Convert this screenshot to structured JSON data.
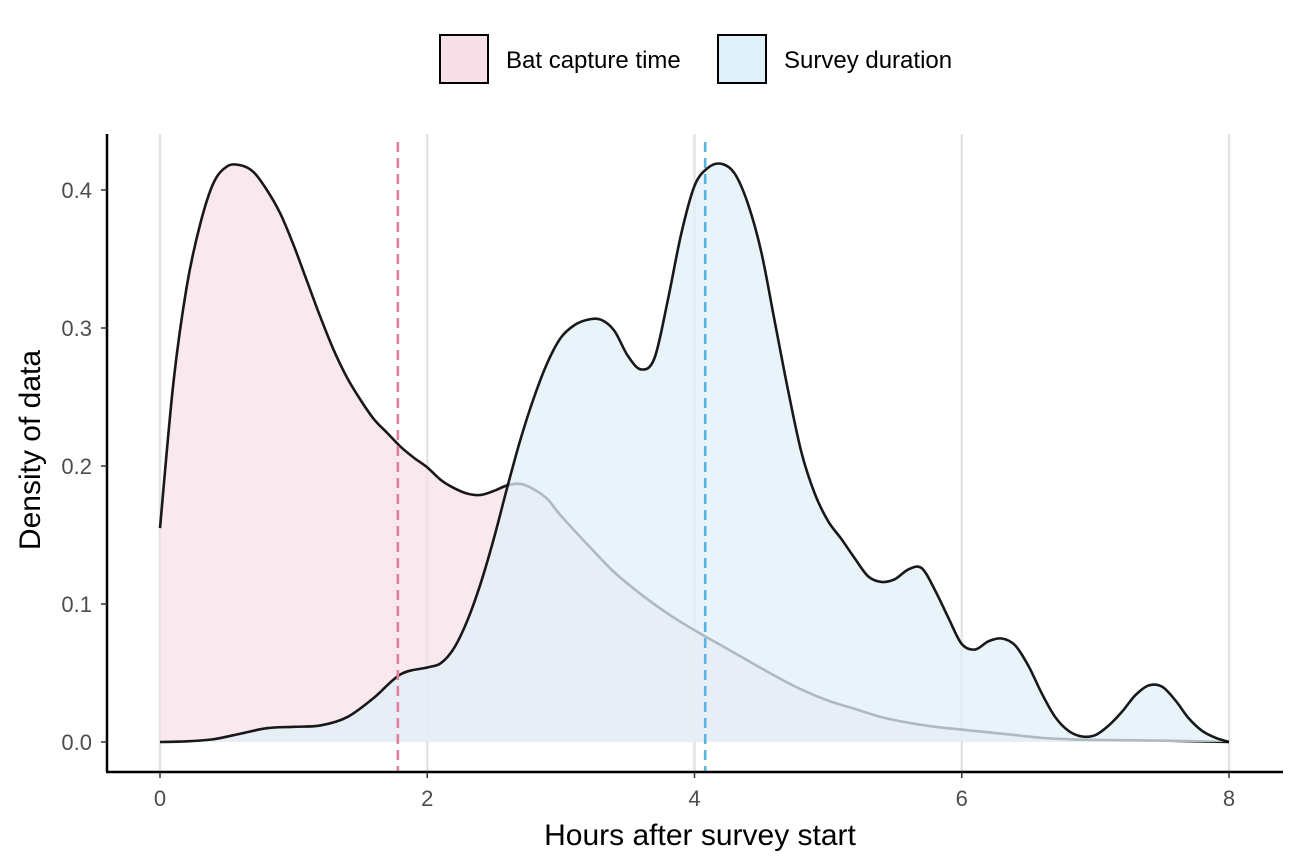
{
  "chart_data": {
    "type": "area",
    "title": "",
    "xlabel": "Hours after survey start",
    "ylabel": "Density of data",
    "xlim": [
      0,
      8
    ],
    "ylim": [
      0,
      0.42
    ],
    "xticks": [
      0,
      2,
      4,
      6,
      8
    ],
    "yticks": [
      0.0,
      0.1,
      0.2,
      0.3,
      0.4
    ],
    "xtick_labels": [
      "0",
      "2",
      "4",
      "6",
      "8"
    ],
    "ytick_labels": [
      "0.0",
      "0.1",
      "0.2",
      "0.3",
      "0.4"
    ],
    "grid": "vertical major lines",
    "legend_position": "top",
    "series": [
      {
        "name": "Bat capture time",
        "color": "#f7e0e8",
        "mean_line_color": "#e07fa0",
        "mean": 1.78,
        "points": [
          [
            0,
            0.155
          ],
          [
            0.1,
            0.26
          ],
          [
            0.2,
            0.33
          ],
          [
            0.3,
            0.375
          ],
          [
            0.4,
            0.405
          ],
          [
            0.5,
            0.417
          ],
          [
            0.6,
            0.418
          ],
          [
            0.7,
            0.413
          ],
          [
            0.8,
            0.4
          ],
          [
            0.9,
            0.383
          ],
          [
            1.0,
            0.36
          ],
          [
            1.1,
            0.334
          ],
          [
            1.2,
            0.308
          ],
          [
            1.3,
            0.284
          ],
          [
            1.4,
            0.264
          ],
          [
            1.5,
            0.248
          ],
          [
            1.6,
            0.234
          ],
          [
            1.7,
            0.224
          ],
          [
            1.8,
            0.214
          ],
          [
            1.9,
            0.206
          ],
          [
            2.0,
            0.199
          ],
          [
            2.1,
            0.19
          ],
          [
            2.2,
            0.184
          ],
          [
            2.3,
            0.18
          ],
          [
            2.4,
            0.179
          ],
          [
            2.5,
            0.182
          ],
          [
            2.6,
            0.186
          ],
          [
            2.7,
            0.187
          ],
          [
            2.8,
            0.183
          ],
          [
            2.9,
            0.176
          ],
          [
            3.0,
            0.164
          ],
          [
            3.2,
            0.143
          ],
          [
            3.4,
            0.123
          ],
          [
            3.6,
            0.107
          ],
          [
            3.8,
            0.093
          ],
          [
            4.0,
            0.081
          ],
          [
            4.2,
            0.07
          ],
          [
            4.4,
            0.059
          ],
          [
            4.6,
            0.048
          ],
          [
            4.8,
            0.038
          ],
          [
            5.0,
            0.03
          ],
          [
            5.2,
            0.024
          ],
          [
            5.4,
            0.018
          ],
          [
            5.6,
            0.014
          ],
          [
            5.8,
            0.011
          ],
          [
            6.0,
            0.009
          ],
          [
            6.2,
            0.007
          ],
          [
            6.4,
            0.005
          ],
          [
            6.6,
            0.003
          ],
          [
            6.8,
            0.002
          ],
          [
            7.0,
            0.0015
          ],
          [
            7.5,
            0.001
          ],
          [
            8.0,
            0.0
          ]
        ]
      },
      {
        "name": "Survey duration",
        "color": "#e0f0f8",
        "mean_line_color": "#5ab4e0",
        "mean": 4.08,
        "points": [
          [
            0,
            0.0
          ],
          [
            0.2,
            0.0005
          ],
          [
            0.4,
            0.002
          ],
          [
            0.6,
            0.006
          ],
          [
            0.8,
            0.01
          ],
          [
            1.0,
            0.011
          ],
          [
            1.2,
            0.012
          ],
          [
            1.4,
            0.018
          ],
          [
            1.6,
            0.032
          ],
          [
            1.8,
            0.049
          ],
          [
            2.0,
            0.054
          ],
          [
            2.1,
            0.057
          ],
          [
            2.2,
            0.068
          ],
          [
            2.3,
            0.088
          ],
          [
            2.4,
            0.115
          ],
          [
            2.5,
            0.148
          ],
          [
            2.6,
            0.185
          ],
          [
            2.7,
            0.22
          ],
          [
            2.8,
            0.25
          ],
          [
            2.9,
            0.275
          ],
          [
            3.0,
            0.293
          ],
          [
            3.1,
            0.302
          ],
          [
            3.2,
            0.306
          ],
          [
            3.3,
            0.306
          ],
          [
            3.4,
            0.298
          ],
          [
            3.5,
            0.28
          ],
          [
            3.6,
            0.27
          ],
          [
            3.7,
            0.278
          ],
          [
            3.8,
            0.32
          ],
          [
            3.9,
            0.368
          ],
          [
            4.0,
            0.403
          ],
          [
            4.1,
            0.416
          ],
          [
            4.2,
            0.419
          ],
          [
            4.3,
            0.412
          ],
          [
            4.4,
            0.39
          ],
          [
            4.5,
            0.355
          ],
          [
            4.6,
            0.305
          ],
          [
            4.7,
            0.255
          ],
          [
            4.8,
            0.21
          ],
          [
            4.9,
            0.18
          ],
          [
            5.0,
            0.16
          ],
          [
            5.1,
            0.147
          ],
          [
            5.2,
            0.133
          ],
          [
            5.3,
            0.12
          ],
          [
            5.4,
            0.116
          ],
          [
            5.5,
            0.118
          ],
          [
            5.6,
            0.125
          ],
          [
            5.7,
            0.126
          ],
          [
            5.8,
            0.11
          ],
          [
            5.9,
            0.09
          ],
          [
            6.0,
            0.071
          ],
          [
            6.1,
            0.067
          ],
          [
            6.2,
            0.073
          ],
          [
            6.3,
            0.075
          ],
          [
            6.4,
            0.07
          ],
          [
            6.5,
            0.055
          ],
          [
            6.6,
            0.035
          ],
          [
            6.7,
            0.018
          ],
          [
            6.8,
            0.008
          ],
          [
            6.9,
            0.004
          ],
          [
            7.0,
            0.005
          ],
          [
            7.1,
            0.012
          ],
          [
            7.2,
            0.022
          ],
          [
            7.3,
            0.034
          ],
          [
            7.4,
            0.041
          ],
          [
            7.5,
            0.04
          ],
          [
            7.6,
            0.03
          ],
          [
            7.7,
            0.017
          ],
          [
            7.8,
            0.008
          ],
          [
            7.9,
            0.003
          ],
          [
            8.0,
            0.0
          ]
        ]
      }
    ]
  }
}
